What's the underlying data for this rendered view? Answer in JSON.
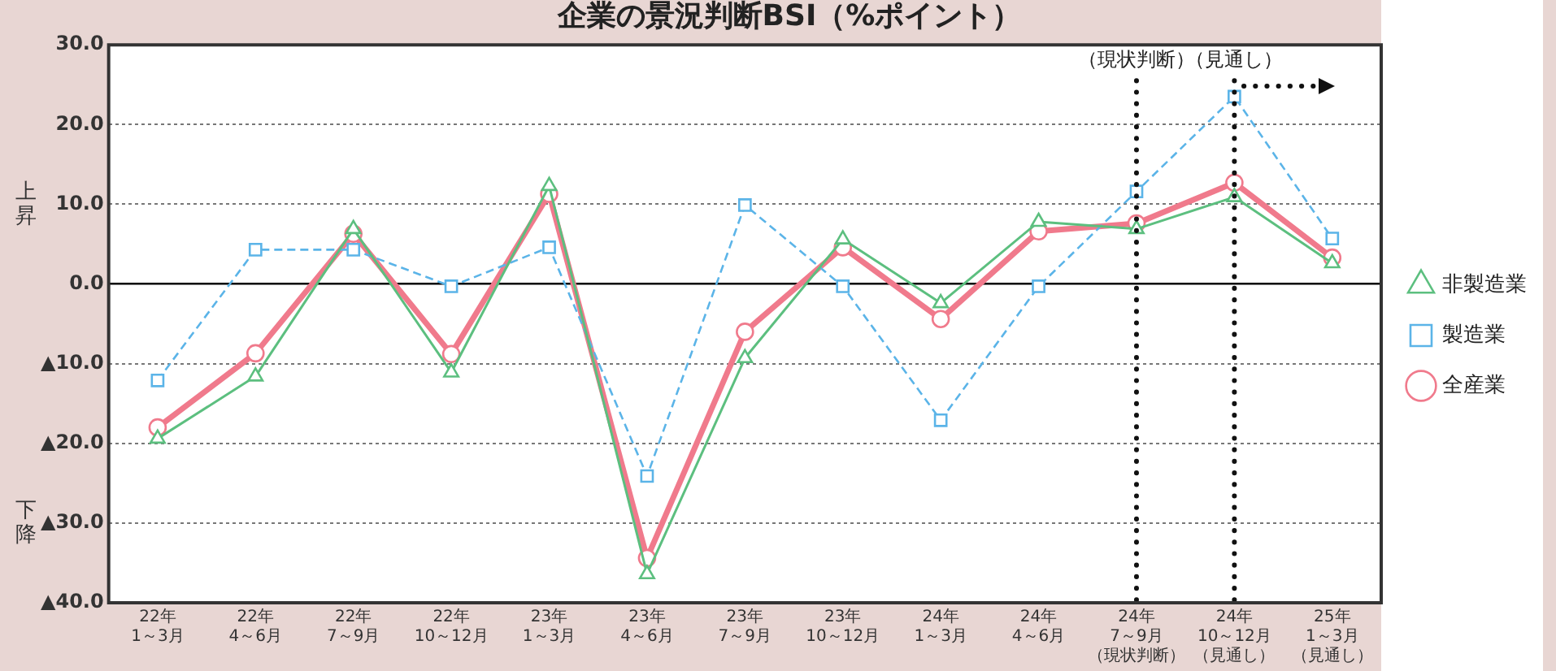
{
  "chart_data": {
    "type": "line",
    "title": "企業の景況判断BSI（%ポイント）",
    "categories": [
      "22年\n1～3月",
      "22年\n4～6月",
      "22年\n7～9月",
      "22年\n10～12月",
      "23年\n1～3月",
      "23年\n4～6月",
      "23年\n7～9月",
      "23年\n10～12月",
      "24年\n1～3月",
      "24年\n4～6月",
      "24年\n7～9月（現状判断）",
      "24年\n10～12月（見通し）",
      "25年\n1～3月（見通し）"
    ],
    "series": [
      {
        "name": "全産業",
        "color": "#f07a8c",
        "marker": "circle",
        "line_style": "solid",
        "values": [
          -18.0,
          -8.7,
          6.3,
          -8.8,
          11.3,
          -34.4,
          -6.0,
          4.6,
          -4.4,
          6.6,
          7.6,
          12.7,
          3.3
        ]
      },
      {
        "name": "製造業",
        "color": "#5bb4e8",
        "marker": "square",
        "line_style": "dashed",
        "values": [
          -12.1,
          4.3,
          4.3,
          -0.3,
          4.6,
          -24.1,
          9.9,
          -0.3,
          -17.1,
          -0.3,
          11.6,
          23.5,
          5.7
        ]
      },
      {
        "name": "非製造業",
        "color": "#5cbf7f",
        "marker": "triangle",
        "line_style": "solid",
        "values": [
          -19.4,
          -11.6,
          6.9,
          -11.1,
          12.3,
          -36.4,
          -9.3,
          5.6,
          -2.4,
          7.8,
          6.9,
          10.9,
          2.6
        ]
      }
    ],
    "ylim": [
      -40,
      30
    ],
    "yticks": [
      {
        "value": -40,
        "label": "▲40.0"
      },
      {
        "value": -30,
        "label": "▲30.0"
      },
      {
        "value": -20,
        "label": "▲20.0"
      },
      {
        "value": -10,
        "label": "▲10.0"
      },
      {
        "value": 0,
        "label": "0.0"
      },
      {
        "value": 10,
        "label": "10.0"
      },
      {
        "value": 20,
        "label": "20.0"
      },
      {
        "value": 30,
        "label": "30.0"
      }
    ],
    "ref_lines": [
      {
        "axis": "x",
        "value": "24年\n7～9月（現状判断）",
        "label": "（現状判断）",
        "color": "#111111",
        "line_style": "dotted"
      },
      {
        "axis": "x",
        "value": "24年\n10～12月（見通し）",
        "label": "（見通し）",
        "color": "#111111",
        "line_style": "dotted"
      }
    ],
    "annotations": [
      "上昇",
      "下降"
    ],
    "grid": "y",
    "legend": "right"
  }
}
